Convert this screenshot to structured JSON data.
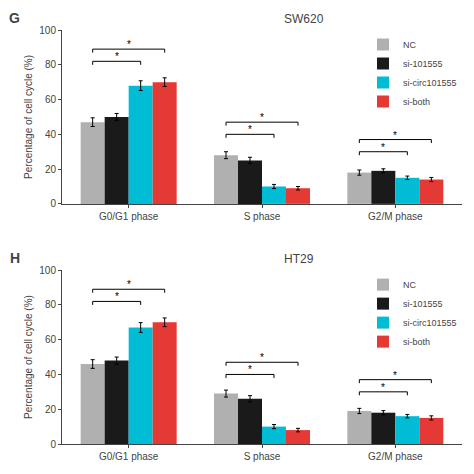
{
  "chart_data": [
    {
      "type": "bar",
      "title": "SW620",
      "annotations": [
        "G"
      ],
      "categories": [
        "G0/G1 phase",
        "S phase",
        "G2/M phase"
      ],
      "series": [
        {
          "name": "NC",
          "color": "#b0b0b0",
          "values": [
            47,
            28,
            18
          ],
          "errors": [
            2.5,
            2.0,
            1.5
          ]
        },
        {
          "name": "si-101555",
          "color": "#1a1a1a",
          "values": [
            50,
            25,
            19
          ],
          "errors": [
            2.0,
            1.8,
            1.2
          ]
        },
        {
          "name": "si-circ101555",
          "color": "#00bcd4",
          "values": [
            68,
            10,
            15
          ],
          "errors": [
            2.8,
            1.2,
            1.0
          ]
        },
        {
          "name": "si-both",
          "color": "#e53935",
          "values": [
            70,
            9,
            14
          ],
          "errors": [
            2.5,
            1.0,
            1.2
          ]
        }
      ],
      "brackets": [
        {
          "category": "G0/G1 phase",
          "from": "NC",
          "to": "si-circ101555",
          "y": 80,
          "height": 2,
          "label": "*"
        },
        {
          "category": "G0/G1 phase",
          "from": "NC",
          "to": "si-both",
          "y": 87,
          "height": 2,
          "label": "*"
        },
        {
          "category": "S phase",
          "from": "NC",
          "to": "si-circ101555",
          "y": 38,
          "height": 2,
          "label": "*"
        },
        {
          "category": "S phase",
          "from": "NC",
          "to": "si-both",
          "y": 45,
          "height": 2,
          "label": "*"
        },
        {
          "category": "G2/M phase",
          "from": "NC",
          "to": "si-circ101555",
          "y": 28,
          "height": 2,
          "label": "*"
        },
        {
          "category": "G2/M phase",
          "from": "NC",
          "to": "si-both",
          "y": 35,
          "height": 2,
          "label": "*"
        }
      ],
      "ylabel": "Percentage of cell cycle (%)",
      "ylim": [
        0,
        100
      ],
      "yticks": [
        0,
        20,
        40,
        60,
        80,
        100
      ],
      "legend": "upper right",
      "grid": false
    },
    {
      "type": "bar",
      "title": "HT29",
      "annotations": [
        "H"
      ],
      "categories": [
        "G0/G1 phase",
        "S phase",
        "G2/M phase"
      ],
      "series": [
        {
          "name": "NC",
          "color": "#b0b0b0",
          "values": [
            46,
            29,
            19
          ],
          "errors": [
            2.5,
            2.0,
            1.5
          ]
        },
        {
          "name": "si-101555",
          "color": "#1a1a1a",
          "values": [
            48,
            26,
            18
          ],
          "errors": [
            2.0,
            1.8,
            1.2
          ]
        },
        {
          "name": "si-circ101555",
          "color": "#00bcd4",
          "values": [
            67,
            10,
            16
          ],
          "errors": [
            2.8,
            1.2,
            1.0
          ]
        },
        {
          "name": "si-both",
          "color": "#e53935",
          "values": [
            70,
            8,
            15
          ],
          "errors": [
            2.5,
            1.0,
            1.2
          ]
        }
      ],
      "brackets": [
        {
          "category": "G0/G1 phase",
          "from": "NC",
          "to": "si-circ101555",
          "y": 80,
          "height": 2,
          "label": "*"
        },
        {
          "category": "G0/G1 phase",
          "from": "NC",
          "to": "si-both",
          "y": 87,
          "height": 2,
          "label": "*"
        },
        {
          "category": "S phase",
          "from": "NC",
          "to": "si-circ101555",
          "y": 38,
          "height": 2,
          "label": "*"
        },
        {
          "category": "S phase",
          "from": "NC",
          "to": "si-both",
          "y": 45,
          "height": 2,
          "label": "*"
        },
        {
          "category": "G2/M phase",
          "from": "NC",
          "to": "si-circ101555",
          "y": 28,
          "height": 2,
          "label": "*"
        },
        {
          "category": "G2/M phase",
          "from": "NC",
          "to": "si-both",
          "y": 35,
          "height": 2,
          "label": "*"
        }
      ],
      "ylabel": "Percentage of cell cycle (%)",
      "ylim": [
        0,
        100
      ],
      "yticks": [
        0,
        20,
        40,
        60,
        80,
        100
      ],
      "legend": "upper right",
      "grid": false
    }
  ]
}
